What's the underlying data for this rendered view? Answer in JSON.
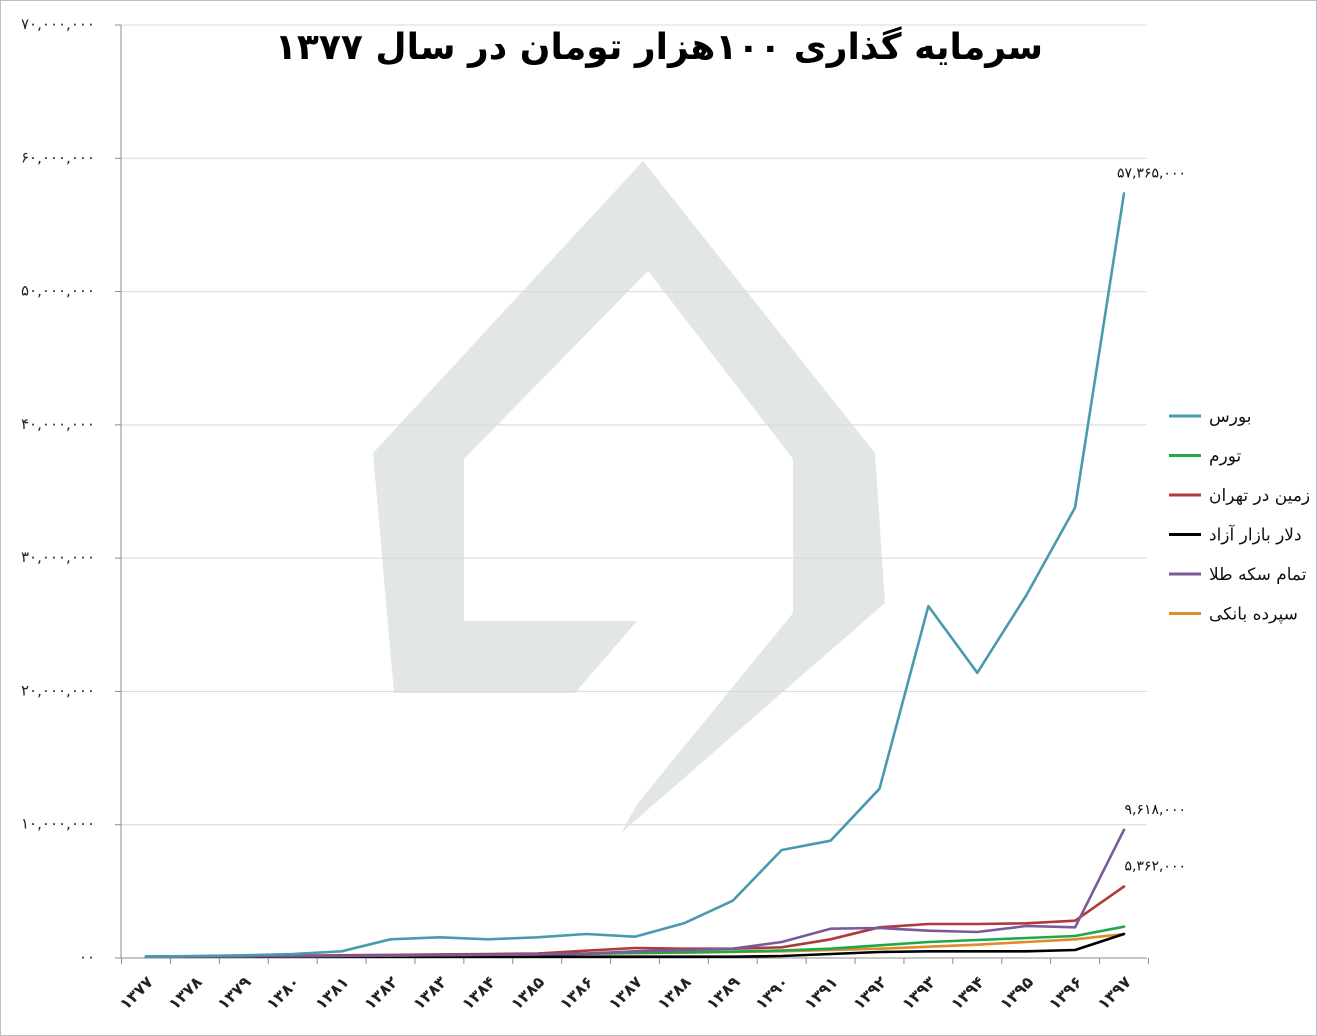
{
  "chart_data": {
    "type": "line",
    "title": "سرمایه گذاری ۱۰۰هزار تومان در سال ۱۳۷۷",
    "ylim": [
      0,
      70000000
    ],
    "y_ticks": [
      0,
      10000000,
      20000000,
      30000000,
      40000000,
      50000000,
      60000000,
      70000000
    ],
    "y_tick_labels": [
      "۰۰",
      "۱۰,۰۰۰,۰۰۰",
      "۲۰,۰۰۰,۰۰۰",
      "۳۰,۰۰۰,۰۰۰",
      "۴۰,۰۰۰,۰۰۰",
      "۵۰,۰۰۰,۰۰۰",
      "۶۰,۰۰۰,۰۰۰",
      "۷۰,۰۰۰,۰۰۰"
    ],
    "categories": [
      "۱۳۷۷",
      "۱۳۷۸",
      "۱۳۷۹",
      "۱۳۸۰",
      "۱۳۸۱",
      "۱۳۸۲",
      "۱۳۸۳",
      "۱۳۸۴",
      "۱۳۸۵",
      "۱۳۸۶",
      "۱۳۸۷",
      "۱۳۸۸",
      "۱۳۸۹",
      "۱۳۹۰",
      "۱۳۹۱",
      "۱۳۹۲",
      "۱۳۹۳",
      "۱۳۹۴",
      "۱۳۹۵",
      "۱۳۹۶",
      "۱۳۹۷"
    ],
    "grid": true,
    "legend_position": "right",
    "series": [
      {
        "name": "بورس",
        "color": "#4a9aae",
        "values": [
          100000,
          150000,
          200000,
          300000,
          500000,
          1400000,
          1550000,
          1400000,
          1550000,
          1800000,
          1600000,
          2600000,
          4300000,
          8100000,
          8800000,
          12700000,
          26400000,
          21400000,
          27200000,
          33800000,
          57365000
        ]
      },
      {
        "name": "تورم",
        "color": "#1fa84a",
        "values": [
          100000,
          115000,
          130000,
          145000,
          165000,
          190000,
          220000,
          250000,
          280000,
          320000,
          380000,
          430000,
          480000,
          560000,
          700000,
          950000,
          1200000,
          1350000,
          1500000,
          1650000,
          2350000
        ]
      },
      {
        "name": "زمین در تهران",
        "color": "#b03a3a",
        "values": [
          100000,
          120000,
          150000,
          170000,
          200000,
          230000,
          270000,
          300000,
          330000,
          550000,
          750000,
          700000,
          700000,
          800000,
          1400000,
          2300000,
          2550000,
          2550000,
          2600000,
          2800000,
          5362000
        ]
      },
      {
        "name": "دلار بازار آزاد",
        "color": "#000000",
        "values": [
          100000,
          100000,
          100000,
          100000,
          100000,
          100000,
          100000,
          100000,
          100000,
          100000,
          100000,
          100000,
          100000,
          150000,
          300000,
          450000,
          500000,
          500000,
          500000,
          600000,
          1800000
        ]
      },
      {
        "name": "تمام سکه طلا",
        "color": "#7a5b9a",
        "values": [
          100000,
          110000,
          120000,
          130000,
          150000,
          180000,
          210000,
          240000,
          270000,
          330000,
          500000,
          600000,
          700000,
          1200000,
          2200000,
          2250000,
          2050000,
          1950000,
          2400000,
          2300000,
          9618000
        ]
      },
      {
        "name": "سپرده بانکی",
        "color": "#e08a2a",
        "values": [
          100000,
          115000,
          130000,
          150000,
          170000,
          190000,
          220000,
          250000,
          280000,
          320000,
          360000,
          400000,
          450000,
          500000,
          600000,
          700000,
          850000,
          1000000,
          1200000,
          1400000,
          1800000
        ]
      }
    ],
    "data_labels": [
      {
        "series": "بورس",
        "index": 20,
        "text": "۵۷,۳۶۵,۰۰۰"
      },
      {
        "series": "تمام سکه طلا",
        "index": 20,
        "text": "۹,۶۱۸,۰۰۰"
      },
      {
        "series": "زمین در تهران",
        "index": 20,
        "text": "۵,۳۶۲,۰۰۰"
      }
    ]
  }
}
